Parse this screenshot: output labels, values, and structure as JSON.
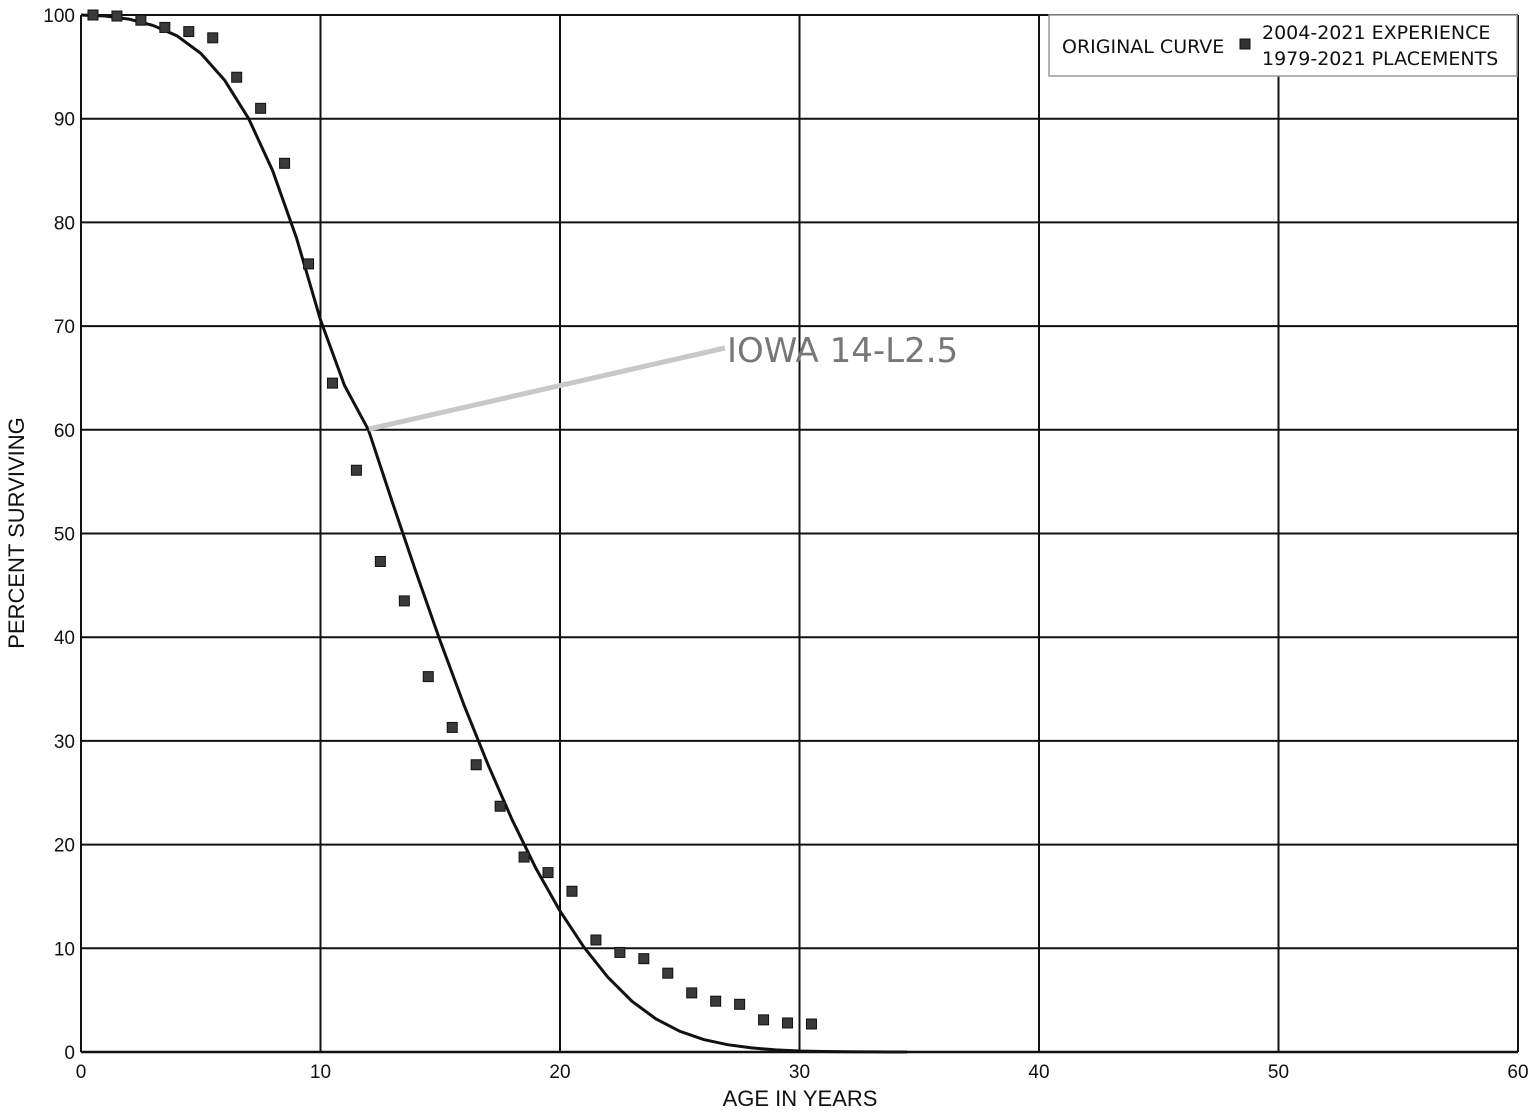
{
  "chart_data": {
    "type": "scatter",
    "xlabel": "AGE IN YEARS",
    "ylabel": "PERCENT SURVIVING",
    "xlim": [
      0,
      60
    ],
    "ylim": [
      0,
      100
    ],
    "xticks": [
      0,
      10,
      20,
      30,
      40,
      50,
      60
    ],
    "yticks": [
      0,
      10,
      20,
      30,
      40,
      50,
      60,
      70,
      80,
      90,
      100
    ],
    "grid": true,
    "legend": {
      "placement": "top-right",
      "line_label": "ORIGINAL CURVE",
      "marker_label_line1": "2004-2021 EXPERIENCE",
      "marker_label_line2": "1979-2021 PLACEMENTS"
    },
    "annotation": {
      "text": "IOWA 14-L2.5",
      "points_to": [
        12,
        60
      ]
    },
    "series": [
      {
        "name": "ORIGINAL CURVE",
        "kind": "line",
        "x": [
          0,
          1,
          2,
          3,
          4,
          5,
          6,
          7,
          8,
          9,
          10,
          11,
          12,
          13,
          14,
          15,
          16,
          17,
          18,
          19,
          20,
          21,
          22,
          23,
          24,
          25,
          26,
          27,
          28,
          29,
          30,
          31,
          32,
          33,
          34.5
        ],
        "y": [
          100,
          99.9,
          99.6,
          99.0,
          98.0,
          96.3,
          93.7,
          90.0,
          85.0,
          78.5,
          70.6,
          64.3,
          60.0,
          53.0,
          46.2,
          39.6,
          33.4,
          27.7,
          22.4,
          17.7,
          13.6,
          10.1,
          7.2,
          4.9,
          3.2,
          2.0,
          1.2,
          0.7,
          0.4,
          0.2,
          0.1,
          0.05,
          0.02,
          0.01,
          0
        ]
      },
      {
        "name": "2004-2021 EXPERIENCE 1979-2021 PLACEMENTS",
        "kind": "scatter",
        "x": [
          0.5,
          1.5,
          2.5,
          3.5,
          4.5,
          5.5,
          6.5,
          7.5,
          8.5,
          9.5,
          10.5,
          11.5,
          12.5,
          13.5,
          14.5,
          15.5,
          16.5,
          17.5,
          18.5,
          19.5,
          20.5,
          21.5,
          22.5,
          23.5,
          24.5,
          25.5,
          26.5,
          27.5,
          28.5,
          29.5,
          30.5
        ],
        "y": [
          100,
          99.9,
          99.5,
          98.8,
          98.4,
          97.8,
          94.0,
          91.0,
          85.7,
          76.0,
          64.5,
          56.1,
          47.3,
          43.5,
          36.2,
          31.3,
          27.7,
          23.7,
          18.8,
          17.3,
          15.5,
          10.8,
          9.6,
          9.0,
          7.6,
          5.7,
          4.9,
          4.6,
          3.1,
          2.8,
          2.7
        ]
      }
    ]
  }
}
